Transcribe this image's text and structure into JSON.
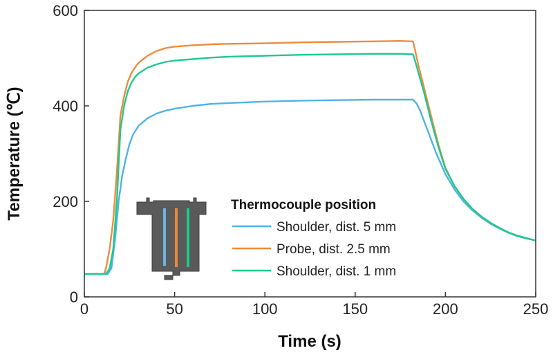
{
  "chart_data": {
    "type": "line",
    "xlabel": "Time (s)",
    "ylabel": "Temperature (℃)",
    "xlim": [
      0,
      250
    ],
    "ylim": [
      0,
      600
    ],
    "xticks": [
      0,
      50,
      100,
      150,
      200,
      250
    ],
    "yticks": [
      0,
      200,
      400,
      600
    ],
    "grid": false,
    "legend": {
      "title": "Thermocouple position",
      "placement": "bottom-center"
    },
    "series": [
      {
        "name": "Shoulder, dist. 5 mm",
        "color": "#4db3e6",
        "points": [
          [
            0,
            48
          ],
          [
            13,
            48
          ],
          [
            15,
            60
          ],
          [
            17,
            120
          ],
          [
            19,
            200
          ],
          [
            21,
            255
          ],
          [
            23,
            290
          ],
          [
            25,
            320
          ],
          [
            27,
            340
          ],
          [
            30,
            358
          ],
          [
            35,
            374
          ],
          [
            40,
            384
          ],
          [
            45,
            390
          ],
          [
            50,
            394
          ],
          [
            60,
            400
          ],
          [
            70,
            404
          ],
          [
            80,
            406
          ],
          [
            100,
            409
          ],
          [
            120,
            411
          ],
          [
            140,
            412
          ],
          [
            160,
            413
          ],
          [
            175,
            413
          ],
          [
            182,
            413
          ],
          [
            184,
            405
          ],
          [
            186,
            390
          ],
          [
            190,
            350
          ],
          [
            195,
            300
          ],
          [
            200,
            257
          ],
          [
            205,
            225
          ],
          [
            210,
            200
          ],
          [
            215,
            181
          ],
          [
            220,
            166
          ],
          [
            225,
            153
          ],
          [
            230,
            143
          ],
          [
            235,
            134
          ],
          [
            240,
            127
          ],
          [
            245,
            122
          ],
          [
            250,
            118
          ]
        ]
      },
      {
        "name": "Probe, dist. 2.5 mm",
        "color": "#f08a3c",
        "points": [
          [
            0,
            48
          ],
          [
            11,
            48
          ],
          [
            12,
            60
          ],
          [
            14,
            100
          ],
          [
            16,
            160
          ],
          [
            18,
            260
          ],
          [
            20,
            380
          ],
          [
            22,
            420
          ],
          [
            24,
            450
          ],
          [
            26,
            468
          ],
          [
            28,
            480
          ],
          [
            30,
            490
          ],
          [
            35,
            505
          ],
          [
            40,
            515
          ],
          [
            45,
            521
          ],
          [
            50,
            524
          ],
          [
            60,
            527
          ],
          [
            70,
            529
          ],
          [
            80,
            530
          ],
          [
            100,
            531
          ],
          [
            120,
            533
          ],
          [
            140,
            534
          ],
          [
            160,
            535
          ],
          [
            175,
            536
          ],
          [
            182,
            535
          ],
          [
            183,
            520
          ],
          [
            185,
            485
          ],
          [
            188,
            440
          ],
          [
            192,
            380
          ],
          [
            196,
            320
          ],
          [
            200,
            270
          ],
          [
            205,
            232
          ],
          [
            210,
            205
          ],
          [
            215,
            184
          ],
          [
            220,
            168
          ],
          [
            225,
            155
          ],
          [
            230,
            144
          ],
          [
            235,
            135
          ],
          [
            240,
            128
          ],
          [
            245,
            123
          ],
          [
            250,
            118
          ]
        ]
      },
      {
        "name": "Shoulder, dist. 1 mm",
        "color": "#1dc98e",
        "points": [
          [
            0,
            48
          ],
          [
            12,
            48
          ],
          [
            14,
            60
          ],
          [
            16,
            100
          ],
          [
            18,
            200
          ],
          [
            20,
            350
          ],
          [
            22,
            400
          ],
          [
            24,
            430
          ],
          [
            26,
            448
          ],
          [
            28,
            460
          ],
          [
            30,
            468
          ],
          [
            35,
            480
          ],
          [
            40,
            487
          ],
          [
            45,
            492
          ],
          [
            50,
            495
          ],
          [
            60,
            498
          ],
          [
            70,
            501
          ],
          [
            80,
            503
          ],
          [
            100,
            505
          ],
          [
            120,
            507
          ],
          [
            140,
            508
          ],
          [
            160,
            509
          ],
          [
            175,
            509
          ],
          [
            182,
            508
          ],
          [
            183,
            497
          ],
          [
            185,
            470
          ],
          [
            188,
            430
          ],
          [
            192,
            370
          ],
          [
            196,
            315
          ],
          [
            200,
            268
          ],
          [
            205,
            232
          ],
          [
            210,
            205
          ],
          [
            215,
            184
          ],
          [
            220,
            168
          ],
          [
            225,
            155
          ],
          [
            230,
            144
          ],
          [
            235,
            135
          ],
          [
            240,
            128
          ],
          [
            245,
            123
          ],
          [
            250,
            118
          ]
        ]
      }
    ]
  }
}
